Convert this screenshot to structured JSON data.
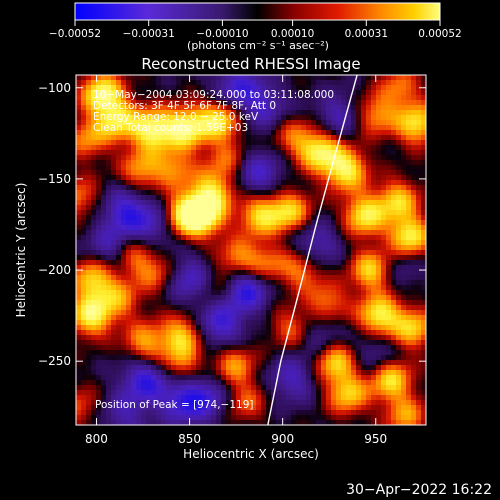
{
  "chart_data": {
    "type": "heatmap",
    "title": "Reconstructed RHESSI Image",
    "xlabel": "Heliocentric X (arcsec)",
    "ylabel": "Heliocentric Y (arcsec)",
    "xlim": [
      789,
      977
    ],
    "ylim": [
      -285,
      -93
    ],
    "x_ticks": [
      {
        "value": 800,
        "label": "800"
      },
      {
        "value": 850,
        "label": "850"
      },
      {
        "value": 900,
        "label": "900"
      },
      {
        "value": 950,
        "label": "950"
      }
    ],
    "y_ticks": [
      {
        "value": -100,
        "label": "−100"
      },
      {
        "value": -150,
        "label": "−150"
      },
      {
        "value": -200,
        "label": "−200"
      },
      {
        "value": -250,
        "label": "−250"
      }
    ],
    "colorbar": {
      "range": [
        -0.00052,
        0.00052
      ],
      "ticks": [
        {
          "value": -0.00052,
          "label": "−0.00052"
        },
        {
          "value": -0.00031,
          "label": "−0.00031"
        },
        {
          "value": -0.0001,
          "label": "−0.00010"
        },
        {
          "value": 0.0001,
          "label": "0.00010"
        },
        {
          "value": 0.00031,
          "label": "0.00031"
        },
        {
          "value": 0.00052,
          "label": "0.00052"
        }
      ],
      "units": "(photons cm⁻² s⁻¹ asec⁻²)"
    },
    "annotations": [
      "10−May−2004 03:09:24.000 to 03:11:08.000",
      "Detectors: 3F 4F 5F 6F 7F 8F, Att 0",
      "Energy Range: 12.0 − 25.0 keV",
      "Clean    Total counts: 1.59E+03"
    ],
    "peak_label": "Position of Peak = [974,−119]",
    "peak": [
      974,
      -119
    ],
    "hot_spots": [
      {
        "x": 803,
        "y": -103,
        "v": 1.0
      },
      {
        "x": 811,
        "y": -118,
        "v": 0.8
      },
      {
        "x": 795,
        "y": -128,
        "v": 0.55
      },
      {
        "x": 830,
        "y": -123,
        "v": 1.0
      },
      {
        "x": 848,
        "y": -122,
        "v": 1.0
      },
      {
        "x": 866,
        "y": -118,
        "v": 0.9
      },
      {
        "x": 824,
        "y": -145,
        "v": 0.6
      },
      {
        "x": 842,
        "y": -144,
        "v": 0.55
      },
      {
        "x": 848,
        "y": -170,
        "v": 1.0
      },
      {
        "x": 858,
        "y": -170,
        "v": 0.9
      },
      {
        "x": 862,
        "y": -157,
        "v": 0.75
      },
      {
        "x": 888,
        "y": -170,
        "v": 0.8
      },
      {
        "x": 904,
        "y": -168,
        "v": 0.75
      },
      {
        "x": 906,
        "y": -127,
        "v": 0.45
      },
      {
        "x": 920,
        "y": -135,
        "v": 0.9
      },
      {
        "x": 934,
        "y": -145,
        "v": 0.95
      },
      {
        "x": 944,
        "y": -170,
        "v": 0.9
      },
      {
        "x": 948,
        "y": -200,
        "v": 0.85
      },
      {
        "x": 952,
        "y": -225,
        "v": 0.95
      },
      {
        "x": 962,
        "y": -162,
        "v": 0.75
      },
      {
        "x": 968,
        "y": -182,
        "v": 0.95
      },
      {
        "x": 972,
        "y": -120,
        "v": 0.85
      },
      {
        "x": 950,
        "y": -115,
        "v": 0.6
      },
      {
        "x": 963,
        "y": -100,
        "v": 0.5
      },
      {
        "x": 970,
        "y": -232,
        "v": 0.75
      },
      {
        "x": 958,
        "y": -260,
        "v": 0.85
      },
      {
        "x": 935,
        "y": -268,
        "v": 0.75
      },
      {
        "x": 928,
        "y": -250,
        "v": 0.8
      },
      {
        "x": 966,
        "y": -280,
        "v": 0.6
      },
      {
        "x": 790,
        "y": -160,
        "v": 0.5
      },
      {
        "x": 798,
        "y": -205,
        "v": 0.8
      },
      {
        "x": 797,
        "y": -225,
        "v": 0.95
      },
      {
        "x": 812,
        "y": -216,
        "v": 0.55
      },
      {
        "x": 826,
        "y": -240,
        "v": 0.65
      },
      {
        "x": 846,
        "y": -236,
        "v": 0.75
      },
      {
        "x": 874,
        "y": -252,
        "v": 0.6
      },
      {
        "x": 880,
        "y": -272,
        "v": 0.45
      },
      {
        "x": 845,
        "y": -252,
        "v": 0.5
      },
      {
        "x": 876,
        "y": -194,
        "v": 0.6
      },
      {
        "x": 891,
        "y": -197,
        "v": 0.5
      },
      {
        "x": 820,
        "y": -192,
        "v": 0.5
      },
      {
        "x": 832,
        "y": -202,
        "v": 0.45
      },
      {
        "x": 910,
        "y": -200,
        "v": 0.55
      },
      {
        "x": 924,
        "y": -218,
        "v": 0.55
      },
      {
        "x": 905,
        "y": -232,
        "v": 0.5
      },
      {
        "x": 870,
        "y": -140,
        "v": 0.45
      },
      {
        "x": 790,
        "y": -275,
        "v": 0.4
      },
      {
        "x": 865,
        "y": -210,
        "v": 0.35
      }
    ],
    "cold_spots": [
      {
        "x": 880,
        "y": -210,
        "v": 1.0
      },
      {
        "x": 866,
        "y": -230,
        "v": 0.8
      },
      {
        "x": 850,
        "y": -205,
        "v": 0.7
      },
      {
        "x": 816,
        "y": -168,
        "v": 0.8
      },
      {
        "x": 832,
        "y": -176,
        "v": 0.55
      },
      {
        "x": 887,
        "y": -147,
        "v": 0.7
      },
      {
        "x": 875,
        "y": -100,
        "v": 0.7
      },
      {
        "x": 890,
        "y": -110,
        "v": 0.6
      },
      {
        "x": 826,
        "y": -260,
        "v": 0.85
      },
      {
        "x": 846,
        "y": -272,
        "v": 0.75
      },
      {
        "x": 860,
        "y": -270,
        "v": 0.6
      },
      {
        "x": 905,
        "y": -260,
        "v": 0.6
      },
      {
        "x": 920,
        "y": -236,
        "v": 0.5
      },
      {
        "x": 918,
        "y": -186,
        "v": 0.6
      },
      {
        "x": 930,
        "y": -115,
        "v": 0.55
      },
      {
        "x": 950,
        "y": -246,
        "v": 0.45
      },
      {
        "x": 807,
        "y": -188,
        "v": 0.55
      },
      {
        "x": 962,
        "y": -198,
        "v": 0.4
      },
      {
        "x": 815,
        "y": -280,
        "v": 0.5
      }
    ]
  },
  "limb": [
    [
      940,
      -93
    ],
    [
      930,
      -130
    ],
    [
      918,
      -175
    ],
    [
      908,
      -215
    ],
    [
      899,
      -250
    ],
    [
      892,
      -285
    ]
  ],
  "timestamp": "30−Apr−2022 16:22",
  "colors": {
    "background": "#000000",
    "text": "#ffffff",
    "limb": "#ffffff"
  }
}
